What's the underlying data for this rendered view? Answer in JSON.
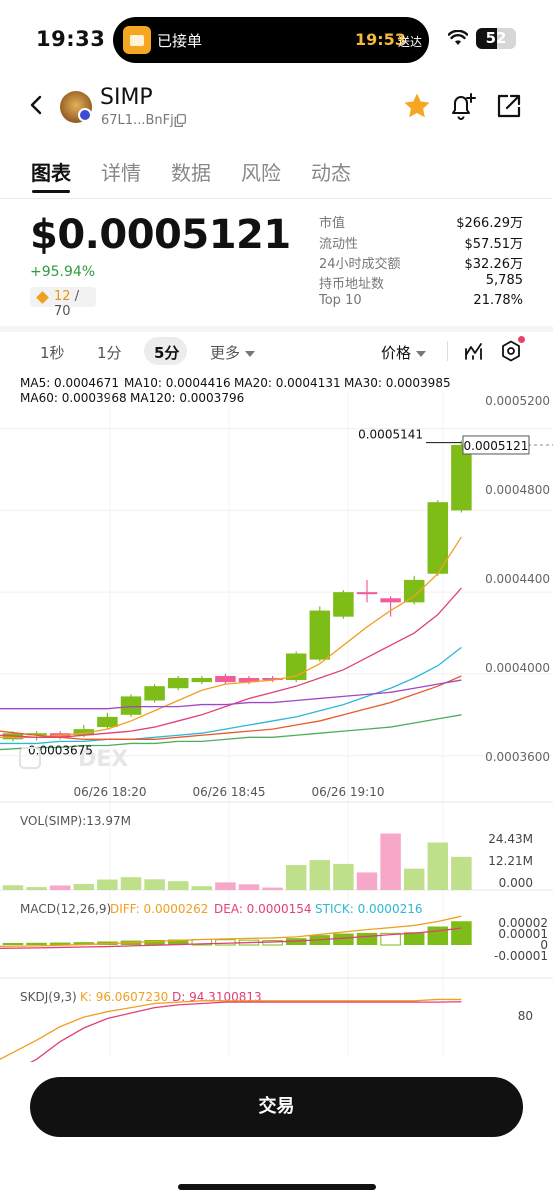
{
  "status_bar": {
    "time": "19:33",
    "island_label": "已接单",
    "island_eta": "19:53",
    "island_eta_suffix": "送达",
    "battery_level": "52"
  },
  "header": {
    "token_name": "SIMP",
    "token_address": "67L1...BnFj",
    "icons": [
      "back-icon",
      "copy-icon",
      "star-icon",
      "bell-add-icon",
      "share-icon"
    ]
  },
  "tabs": [
    {
      "label": "图表",
      "active": true
    },
    {
      "label": "详情",
      "active": false
    },
    {
      "label": "数据",
      "active": false
    },
    {
      "label": "风险",
      "active": false
    },
    {
      "label": "动态",
      "active": false
    }
  ],
  "price": {
    "value": "$0.0005121",
    "change": "+95.94%",
    "score": "12",
    "score_total": "/ 70"
  },
  "stats": [
    {
      "label": "市值",
      "value": "$266.29万"
    },
    {
      "label": "流动性",
      "value": "$57.51万"
    },
    {
      "label": "24小时成交额",
      "value": "$32.26万"
    },
    {
      "label": "持币地址数",
      "value": "5,785"
    },
    {
      "label": "Top 10",
      "value": "21.78%"
    }
  ],
  "toolbar": {
    "timeframes": [
      {
        "label": "1秒",
        "active": false
      },
      {
        "label": "1分",
        "active": false
      },
      {
        "label": "5分",
        "active": true
      },
      {
        "label": "更多",
        "active": false
      }
    ],
    "price_mode": "价格"
  },
  "ma_legend": [
    {
      "label": "MA5: 0.0004671",
      "color": "#f0a020"
    },
    {
      "label": "MA10: 0.0004416",
      "color": "#e0407a"
    },
    {
      "label": "MA20: 0.0004131",
      "color": "#2fb6d6"
    },
    {
      "label": "MA30: 0.0003985",
      "color": "#e85a2a"
    },
    {
      "label": "MA60: 0.0003968",
      "color": "#a046c8"
    },
    {
      "label": "MA120: 0.0003796",
      "color": "#4cae5c"
    }
  ],
  "chart_data": {
    "type": "candlestick",
    "y_axis_labels": [
      "0.0005200",
      "0.0004800",
      "0.0004400",
      "0.0004000",
      "0.0003600"
    ],
    "ylim": [
      0.000353,
      0.000534
    ],
    "x_axis_labels": [
      "06/26 18:20",
      "06/26 18:45",
      "06/26 19:10"
    ],
    "high_label": "0.0005141",
    "low_label": "0.0003675",
    "last_price_label": "0.0005121",
    "watermark": "DEX",
    "candles": [
      {
        "o": 0.000368,
        "c": 0.000371,
        "h": 0.000372,
        "l": 0.000367
      },
      {
        "o": 0.00037,
        "c": 0.000371,
        "h": 0.000372,
        "l": 0.0003675
      },
      {
        "o": 0.000371,
        "c": 0.000369,
        "h": 0.000372,
        "l": 0.000368
      },
      {
        "o": 0.00037,
        "c": 0.000373,
        "h": 0.000375,
        "l": 0.000369
      },
      {
        "o": 0.000374,
        "c": 0.000379,
        "h": 0.000381,
        "l": 0.000373
      },
      {
        "o": 0.00038,
        "c": 0.000389,
        "h": 0.00039,
        "l": 0.000379
      },
      {
        "o": 0.000387,
        "c": 0.000394,
        "h": 0.000395,
        "l": 0.000386
      },
      {
        "o": 0.000393,
        "c": 0.000398,
        "h": 0.000399,
        "l": 0.000392
      },
      {
        "o": 0.000396,
        "c": 0.000398,
        "h": 0.000399,
        "l": 0.000395
      },
      {
        "o": 0.000399,
        "c": 0.000396,
        "h": 0.0004,
        "l": 0.000395
      },
      {
        "o": 0.000398,
        "c": 0.000396,
        "h": 0.000399,
        "l": 0.000395
      },
      {
        "o": 0.000398,
        "c": 0.000397,
        "h": 0.000399,
        "l": 0.000396
      },
      {
        "o": 0.000397,
        "c": 0.00041,
        "h": 0.000411,
        "l": 0.000396
      },
      {
        "o": 0.000407,
        "c": 0.000431,
        "h": 0.000433,
        "l": 0.000406
      },
      {
        "o": 0.000428,
        "c": 0.00044,
        "h": 0.000441,
        "l": 0.000427
      },
      {
        "o": 0.00044,
        "c": 0.000439,
        "h": 0.000446,
        "l": 0.000435
      },
      {
        "o": 0.000437,
        "c": 0.000435,
        "h": 0.000438,
        "l": 0.000428
      },
      {
        "o": 0.000435,
        "c": 0.000446,
        "h": 0.000448,
        "l": 0.000434
      },
      {
        "o": 0.000449,
        "c": 0.000484,
        "h": 0.000485,
        "l": 0.000448
      },
      {
        "o": 0.00048,
        "c": 0.000512,
        "h": 0.0005141,
        "l": 0.000479
      }
    ],
    "ma_lines": {
      "MA5": [
        0.000369,
        0.000369,
        0.00037,
        0.000371,
        0.000373,
        0.000377,
        0.000382,
        0.000387,
        0.000392,
        0.000395,
        0.000396,
        0.000397,
        0.000399,
        0.000405,
        0.000414,
        0.000423,
        0.000431,
        0.000438,
        0.000449,
        0.000467
      ],
      "MA10": [
        0.00037,
        0.000369,
        0.000369,
        0.00037,
        0.000371,
        0.000372,
        0.000374,
        0.000377,
        0.00038,
        0.000384,
        0.000388,
        0.000391,
        0.000394,
        0.000398,
        0.000402,
        0.000408,
        0.000414,
        0.00042,
        0.000429,
        0.000442
      ],
      "MA20": [
        0.000366,
        0.000366,
        0.000367,
        0.000367,
        0.000368,
        0.000368,
        0.000369,
        0.00037,
        0.000371,
        0.000373,
        0.000375,
        0.000377,
        0.000379,
        0.000382,
        0.000385,
        0.000389,
        0.000393,
        0.000398,
        0.000404,
        0.000413
      ],
      "MA30": [
        0.000372,
        0.00037,
        0.000369,
        0.000368,
        0.000368,
        0.000368,
        0.000368,
        0.000369,
        0.00037,
        0.000371,
        0.000372,
        0.000373,
        0.000375,
        0.000377,
        0.00038,
        0.000383,
        0.000386,
        0.00039,
        0.000394,
        0.000399
      ],
      "MA60": [
        0.000383,
        0.000383,
        0.000383,
        0.000383,
        0.000383,
        0.000384,
        0.000384,
        0.000384,
        0.000385,
        0.000385,
        0.000386,
        0.000386,
        0.000387,
        0.000388,
        0.000389,
        0.00039,
        0.000391,
        0.000393,
        0.000395,
        0.000397
      ],
      "MA120": [
        0.000363,
        0.000364,
        0.000364,
        0.000365,
        0.000365,
        0.000366,
        0.000366,
        0.000367,
        0.000367,
        0.000368,
        0.000369,
        0.000369,
        0.00037,
        0.000371,
        0.000372,
        0.000373,
        0.000374,
        0.000376,
        0.000378,
        0.00038
      ]
    },
    "volume": {
      "label": "VOL(SIMP):13.97M",
      "axis_labels": [
        "24.43M",
        "12.21M",
        "0.000"
      ],
      "values": [
        2.0,
        1.2,
        1.9,
        2.5,
        4.4,
        5.4,
        4.5,
        3.7,
        1.6,
        3.2,
        2.4,
        1.0,
        10.5,
        12.6,
        11.0,
        7.4,
        23.8,
        9.0,
        20.0,
        13.97
      ]
    },
    "macd": {
      "label": "MACD(12,26,9)",
      "diff": "DIFF: 0.0000262",
      "dea": "DEA: 0.0000154",
      "stick": "STICK: 0.0000216",
      "axis_labels": [
        "0.00002",
        "0.00001",
        "0",
        "-0.00001"
      ],
      "hist": [
        1.8e-06,
        2e-06,
        2.2e-06,
        2.6e-06,
        3.2e-06,
        4e-06,
        4.6e-06,
        5e-06,
        5e-06,
        4.8e-06,
        4.4e-06,
        4e-06,
        6.2e-06,
        9e-06,
        1.04e-05,
        1.1e-05,
        1.06e-05,
        1.16e-05,
        1.68e-05,
        2.16e-05
      ],
      "diff_line": [
        -1.2e-06,
        -8e-07,
        -2e-07,
        4e-07,
        1.2e-06,
        2.2e-06,
        3.2e-06,
        4.2e-06,
        5e-06,
        5.6e-06,
        6e-06,
        6.4e-06,
        7.4e-06,
        9.6e-06,
        1.18e-05,
        1.4e-05,
        1.58e-05,
        1.78e-05,
        2.14e-05,
        2.62e-05
      ],
      "dea_line": [
        -3e-06,
        -2.6e-06,
        -2.2e-06,
        -1.8e-06,
        -1.4e-06,
        -8e-07,
        -2e-07,
        4e-07,
        1e-06,
        1.6e-06,
        2.2e-06,
        2.8e-06,
        3.6e-06,
        4.8e-06,
        6.2e-06,
        7.8e-06,
        9.4e-06,
        1.08e-05,
        1.28e-05,
        1.54e-05
      ],
      "hist_hollow": [
        false,
        false,
        false,
        false,
        false,
        false,
        false,
        false,
        true,
        true,
        true,
        true,
        false,
        false,
        false,
        false,
        true,
        false,
        false,
        false
      ]
    },
    "skdj": {
      "label": "SKDJ(9,3)",
      "k": "K: 96.0607230",
      "d": "D: 94.3100813",
      "axis_labels": [
        "80"
      ],
      "ylim": [
        50,
        100
      ],
      "k_line": [
        52,
        66,
        76,
        83,
        87,
        90,
        93,
        94,
        95,
        95,
        95,
        95,
        95,
        95,
        95,
        95,
        95,
        95,
        96,
        96
      ],
      "d_line": [
        38,
        52,
        65,
        75,
        82,
        86,
        90,
        92,
        93,
        94,
        94,
        94,
        94,
        94,
        94,
        94,
        94,
        94,
        94,
        94.3
      ]
    }
  },
  "trade_button": {
    "label": "交易"
  },
  "colors": {
    "up": "#7ebd18",
    "down": "#f25c9c",
    "up_light": "#bfe08a",
    "down_light": "#f7a8c8",
    "accent_gold": "#f5a623"
  }
}
